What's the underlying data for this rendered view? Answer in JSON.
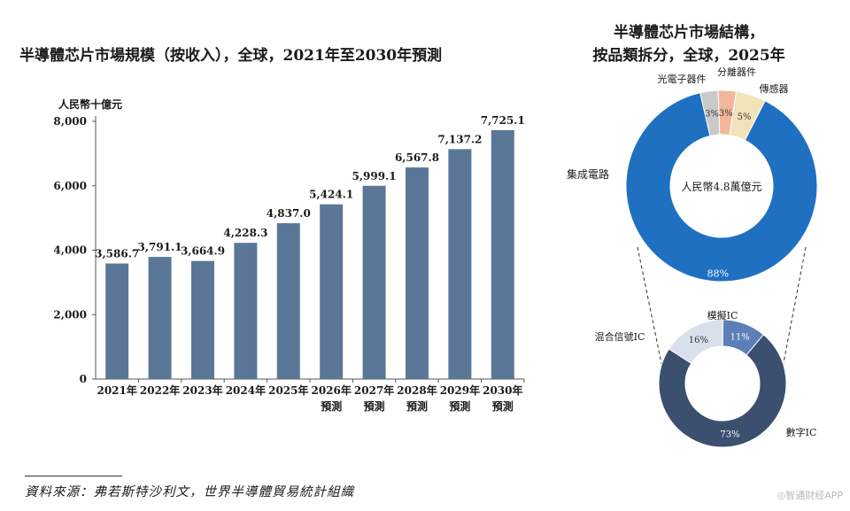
{
  "titles": {
    "bar": "半導體芯片市場規模（按收入），全球，2021年至2030年預測",
    "donut_line1": "半導體芯片市場結構，",
    "donut_line2": "按品類拆分，全球，2025年"
  },
  "source": "資料來源：弗若斯特沙利文，世界半導體貿易統計組織",
  "watermark": "◎智通财经APP",
  "colors": {
    "bar": "#5b7797",
    "outer_ic": "#1f70c1",
    "opto": "#f2e3b8",
    "discrete": "#f2b79b",
    "sensor": "#c9c9c9",
    "digital": "#3b4f6e",
    "mixed": "#d8e0ec",
    "analog": "#5b7fb6"
  },
  "chart_data": [
    {
      "type": "bar",
      "title": "半導體芯片市場規模（按收入），全球，2021年至2030年預測",
      "ylabel": "人民幣十億元",
      "ylim": [
        0,
        8000
      ],
      "yticks": [
        "0",
        "2,000",
        "4,000",
        "6,000",
        "8,000"
      ],
      "ytick_values": [
        0,
        2000,
        4000,
        6000,
        8000
      ],
      "categories": [
        "2021年",
        "2022年",
        "2023年",
        "2024年",
        "2025年",
        "2026年",
        "2027年",
        "2028年",
        "2029年",
        "2030年"
      ],
      "category_sublabels": [
        "",
        "",
        "",
        "",
        "",
        "預測",
        "預測",
        "預測",
        "預測",
        "預測"
      ],
      "values": [
        3586.7,
        3791.1,
        3664.9,
        4228.3,
        4837.0,
        5424.1,
        5999.1,
        6567.8,
        7137.2,
        7725.1
      ],
      "value_labels": [
        "3,586.7",
        "3,791.1",
        "3,664.9",
        "4,228.3",
        "4,837.0",
        "5,424.1",
        "5,999.1",
        "6,567.8",
        "7,137.2",
        "7,725.1"
      ]
    },
    {
      "type": "pie",
      "title": "半導體芯片市場結構，按品類拆分，全球，2025年",
      "center_label": "人民幣4.8萬億元",
      "slices": [
        {
          "name": "集成電路",
          "value": 88,
          "label": "88%"
        },
        {
          "name": "光電子器件",
          "value": 5,
          "label": "5%"
        },
        {
          "name": "分離器件",
          "value": 3,
          "label": "3%"
        },
        {
          "name": "傳感器",
          "value": 3,
          "label": "3%"
        }
      ]
    },
    {
      "type": "pie",
      "slices": [
        {
          "name": "數字IC",
          "value": 73,
          "label": "73%"
        },
        {
          "name": "混合信號IC",
          "value": 16,
          "label": "16%"
        },
        {
          "name": "模擬IC",
          "value": 11,
          "label": "11%"
        }
      ]
    }
  ]
}
